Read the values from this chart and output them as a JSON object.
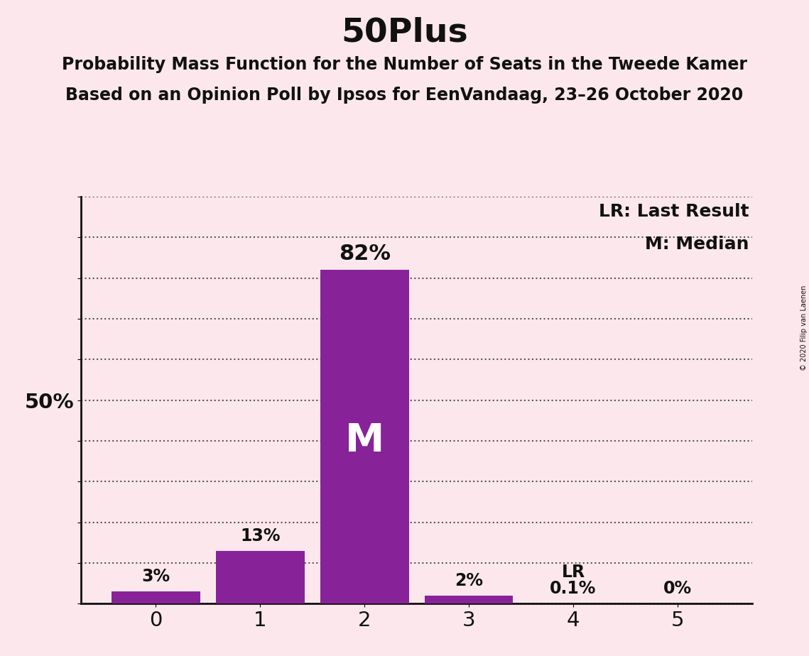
{
  "title": "50Plus",
  "subtitle1": "Probability Mass Function for the Number of Seats in the Tweede Kamer",
  "subtitle2": "Based on an Opinion Poll by Ipsos for EenVandaag, 23–26 October 2020",
  "categories": [
    0,
    1,
    2,
    3,
    4,
    5
  ],
  "values": [
    3,
    13,
    82,
    2,
    0.1,
    0
  ],
  "labels": [
    "3%",
    "13%",
    "82%",
    "2%",
    "0.1%",
    "0%"
  ],
  "bar_color": "#882299",
  "background_color": "#fce8ec",
  "ylim_max": 100,
  "ytick_values": [
    0,
    10,
    20,
    30,
    40,
    50,
    60,
    70,
    80,
    90,
    100
  ],
  "ytick_label_50": "50%",
  "median_seat": 2,
  "median_label": "M",
  "lr_seat": 4,
  "lr_label": "LR",
  "legend_lr": "LR: Last Result",
  "legend_m": "M: Median",
  "copyright": "© 2020 Filip van Laenen",
  "title_fontsize": 34,
  "subtitle_fontsize": 17,
  "label_fontsize": 17,
  "tick_fontsize": 21,
  "legend_fontsize": 18,
  "median_label_fontsize": 40
}
